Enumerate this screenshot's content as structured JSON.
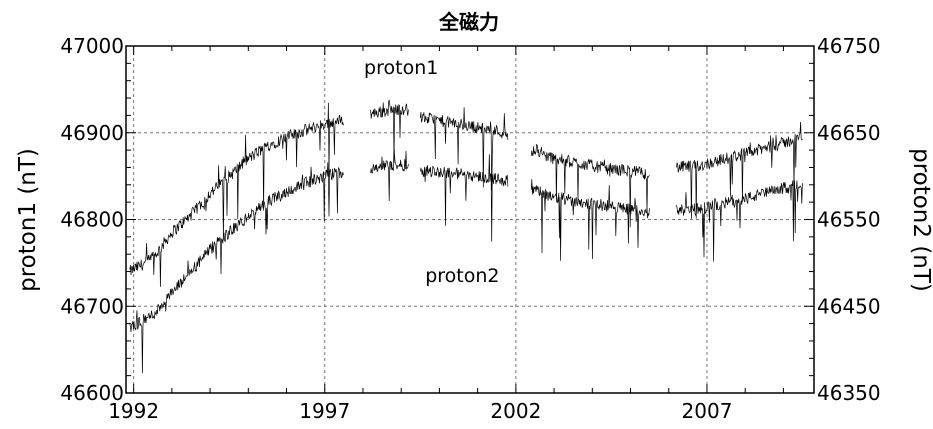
{
  "chart_data": {
    "type": "line",
    "title": "全磁力",
    "xlabel": "",
    "ylabel_left": "proton1 (nT)",
    "ylabel_right": "proton2 (nT)",
    "xlim": [
      1991.8,
      2009.8
    ],
    "ylim_left": [
      46600,
      47000
    ],
    "ylim_right": [
      46350,
      46750
    ],
    "x_ticks": [
      1992,
      1997,
      2002,
      2007
    ],
    "y_ticks_left": [
      46600,
      46700,
      46800,
      46900,
      47000
    ],
    "y_ticks_right": [
      46350,
      46450,
      46550,
      46650,
      46750
    ],
    "grid": true,
    "annotations": [
      {
        "text": "proton1",
        "x": 1999.0,
        "y": 46968
      },
      {
        "text": "proton2",
        "x": 2000.6,
        "y": 46728
      }
    ],
    "series": [
      {
        "name": "proton1",
        "axis": "left",
        "segments": [
          {
            "x": [
              1991.9,
              1992.5,
              1993.0,
              1993.5,
              1994.0,
              1994.5,
              1995.0,
              1995.5,
              1996.0,
              1996.5,
              1997.0,
              1997.5
            ],
            "y": [
              46740,
              46755,
              46785,
              46805,
              46830,
              46850,
              46870,
              46885,
              46895,
              46903,
              46910,
              46915
            ]
          },
          {
            "x": [
              1998.2,
              1998.6,
              1999.0,
              1999.2
            ],
            "y": [
              46922,
              46925,
              46928,
              46926
            ]
          },
          {
            "x": [
              1999.5,
              2000.0,
              2000.5,
              2001.0,
              2001.5,
              2001.8
            ],
            "y": [
              46918,
              46914,
              46910,
              46906,
              46902,
              46898
            ]
          },
          {
            "x": [
              2002.4,
              2003.0,
              2003.5,
              2004.0,
              2004.5,
              2005.0,
              2005.5
            ],
            "y": [
              46880,
              46870,
              46866,
              46862,
              46858,
              46856,
              46852
            ]
          },
          {
            "x": [
              2006.2,
              2006.8,
              2007.3,
              2008.0,
              2008.5,
              2009.0,
              2009.5
            ],
            "y": [
              46860,
              46862,
              46868,
              46876,
              46882,
              46888,
              46896
            ]
          }
        ]
      },
      {
        "name": "proton2",
        "axis": "right",
        "segments": [
          {
            "x": [
              1991.9,
              1992.5,
              1993.0,
              1993.5,
              1994.0,
              1994.5,
              1995.0,
              1995.5,
              1996.0,
              1996.5,
              1997.0,
              1997.5
            ],
            "y": [
              46425,
              46440,
              46465,
              46490,
              46515,
              46535,
              46553,
              46570,
              46582,
              46592,
              46600,
              46605
            ]
          },
          {
            "x": [
              1998.2,
              1998.6,
              1999.0,
              1999.2
            ],
            "y": [
              46610,
              46612,
              46613,
              46612
            ]
          },
          {
            "x": [
              1999.5,
              2000.0,
              2000.5,
              2001.0,
              2001.5,
              2001.8
            ],
            "y": [
              46607,
              46605,
              46603,
              46600,
              46597,
              46594
            ]
          },
          {
            "x": [
              2002.4,
              2003.0,
              2003.5,
              2004.0,
              2004.5,
              2005.0,
              2005.5
            ],
            "y": [
              46585,
              46576,
              46572,
              46568,
              46565,
              46562,
              46558
            ]
          },
          {
            "x": [
              2006.2,
              2006.8,
              2007.3,
              2008.0,
              2008.5,
              2009.0,
              2009.5
            ],
            "y": [
              46560,
              46562,
              46567,
              46574,
              46580,
              46586,
              46593
            ]
          }
        ]
      }
    ]
  }
}
